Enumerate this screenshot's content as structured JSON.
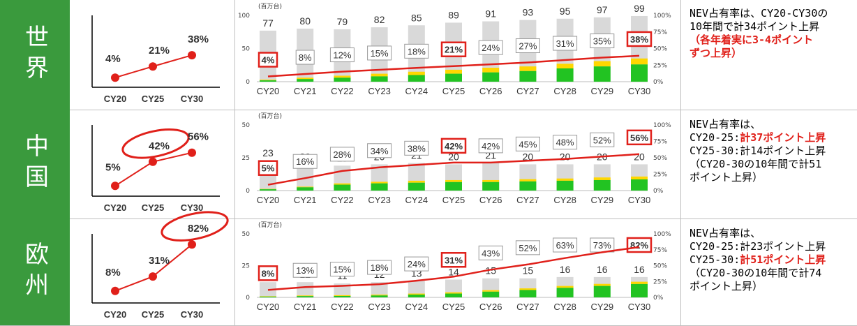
{
  "categories": [
    "CY20",
    "CY21",
    "CY22",
    "CY23",
    "CY24",
    "CY25",
    "CY26",
    "CY27",
    "CY28",
    "CY29",
    "CY30"
  ],
  "mini_x": [
    "CY20",
    "CY25",
    "CY30"
  ],
  "unit": "(百万台)",
  "colors": {
    "region_bg": "#3a9a3d",
    "bar_total": "#d9d9d9",
    "bar_bev": "#22c322",
    "bar_phev": "#ffd700",
    "line": "#e0201a"
  },
  "rows": [
    {
      "region": "世界",
      "mini": {
        "values": [
          4,
          21,
          38
        ],
        "labels": [
          "4%",
          "21%",
          "38%"
        ]
      },
      "chart": {
        "left_ticks": [
          "100",
          "50",
          "0"
        ],
        "right_ticks": [
          "100%",
          "75%",
          "50%",
          "25%",
          "0%"
        ],
        "ylim": [
          0,
          100
        ]
      },
      "chart_data": {
        "type": "bar",
        "categories": [
          "CY20",
          "CY21",
          "CY22",
          "CY23",
          "CY24",
          "CY25",
          "CY26",
          "CY27",
          "CY28",
          "CY29",
          "CY30"
        ],
        "totals": [
          77,
          80,
          79,
          82,
          85,
          89,
          91,
          93,
          95,
          97,
          99
        ],
        "share": [
          4,
          8,
          12,
          15,
          18,
          21,
          24,
          27,
          31,
          35,
          38
        ],
        "share_labels": [
          "4%",
          "8%",
          "12%",
          "15%",
          "18%",
          "21%",
          "24%",
          "27%",
          "31%",
          "35%",
          "38%"
        ],
        "bev": [
          2,
          4,
          6,
          8,
          10,
          12,
          14,
          16,
          20,
          23,
          26
        ],
        "phev": [
          1,
          2,
          3,
          4,
          5,
          6,
          7,
          7,
          7,
          8,
          9
        ],
        "highlight": [
          0,
          5,
          10
        ]
      },
      "note": [
        {
          "t": "NEV占有率は、CY20-CY30の",
          "r": false
        },
        {
          "t": "10年間で計34ポイント上昇",
          "r": false
        },
        {
          "t": "（各年着実に3-4ポイント",
          "r": true
        },
        {
          "t": "ずつ上昇）",
          "r": true
        }
      ]
    },
    {
      "region": "中国",
      "mini": {
        "values": [
          5,
          42,
          56
        ],
        "labels": [
          "5%",
          "42%",
          "56%"
        ]
      },
      "chart": {
        "left_ticks": [
          "50",
          "25",
          "0"
        ],
        "right_ticks": [
          "100%",
          "75%",
          "50%",
          "25%",
          "0%"
        ],
        "ylim": [
          0,
          50
        ]
      },
      "chart_data": {
        "type": "bar",
        "categories": [
          "CY20",
          "CY21",
          "CY22",
          "CY23",
          "CY24",
          "CY25",
          "CY26",
          "CY27",
          "CY28",
          "CY29",
          "CY30"
        ],
        "totals": [
          23,
          20,
          19,
          20,
          21,
          20,
          21,
          20,
          20,
          20,
          20
        ],
        "share": [
          5,
          16,
          28,
          34,
          38,
          42,
          42,
          45,
          48,
          52,
          56
        ],
        "share_labels": [
          "5%",
          "16%",
          "28%",
          "34%",
          "38%",
          "42%",
          "42%",
          "45%",
          "48%",
          "52%",
          "56%"
        ],
        "bev": [
          1,
          2.5,
          4.5,
          5.5,
          6,
          6.5,
          6.5,
          7,
          7.5,
          8,
          8.5
        ],
        "phev": [
          0.3,
          0.5,
          1,
          1.2,
          1.5,
          1.5,
          1.5,
          1.7,
          1.7,
          2,
          2.2
        ],
        "highlight": [
          0,
          5,
          10
        ]
      },
      "note": [
        {
          "t": "NEV占有率は、",
          "r": false
        },
        {
          "t": "CY20-25:",
          "r": false,
          "tail": "計37ポイント上昇"
        },
        {
          "t": "CY25-30:計14ポイント上昇",
          "r": false
        },
        {
          "t": "（CY20-30の10年間で計51",
          "r": false
        },
        {
          "t": "ポイント上昇）",
          "r": false
        }
      ]
    },
    {
      "region": "欧州",
      "mini": {
        "values": [
          8,
          31,
          82
        ],
        "labels": [
          "8%",
          "31%",
          "82%"
        ]
      },
      "chart": {
        "left_ticks": [
          "50",
          "25",
          "0"
        ],
        "right_ticks": [
          "100%",
          "75%",
          "50%",
          "25%",
          "0%"
        ],
        "ylim": [
          0,
          50
        ]
      },
      "chart_data": {
        "type": "bar",
        "categories": [
          "CY20",
          "CY21",
          "CY22",
          "CY23",
          "CY24",
          "CY25",
          "CY26",
          "CY27",
          "CY28",
          "CY29",
          "CY30"
        ],
        "totals": [
          12,
          12,
          11,
          12,
          13,
          14,
          15,
          15,
          16,
          16,
          16
        ],
        "share": [
          8,
          13,
          15,
          18,
          24,
          31,
          43,
          52,
          63,
          73,
          82
        ],
        "share_labels": [
          "8%",
          "13%",
          "15%",
          "18%",
          "24%",
          "31%",
          "43%",
          "52%",
          "63%",
          "73%",
          "82%"
        ],
        "bev": [
          0.6,
          1,
          1.1,
          1.5,
          2.2,
          3,
          4.5,
          5.8,
          7.5,
          9,
          10.5
        ],
        "phev": [
          0.3,
          0.5,
          0.6,
          0.7,
          0.8,
          1,
          1.2,
          1.3,
          1.5,
          1.6,
          1.8
        ],
        "highlight": [
          0,
          5,
          10
        ]
      },
      "note": [
        {
          "t": "NEV占有率は、",
          "r": false
        },
        {
          "t": "CY20-25:計23ポイント上昇",
          "r": false
        },
        {
          "t": "CY25-30:",
          "r": true,
          "tail": "計51ポイント上昇"
        },
        {
          "t": "（CY20-30の10年間で計74",
          "r": false
        },
        {
          "t": "ポイント上昇）",
          "r": false
        }
      ]
    }
  ]
}
